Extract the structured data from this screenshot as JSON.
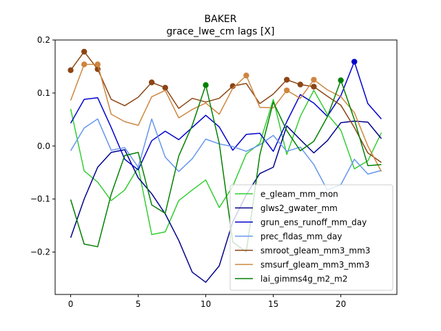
{
  "chart_data": {
    "type": "line",
    "title": "BAKER",
    "subtitle": "grace_lwe_cm lags [X]",
    "xlim": [
      -1.15,
      24.15
    ],
    "ylim": [
      -0.28,
      0.2
    ],
    "xticks": [
      0,
      5,
      10,
      15,
      20
    ],
    "xtick_labels": [
      "0",
      "5",
      "10",
      "15",
      "20"
    ],
    "yticks": [
      -0.2,
      -0.1,
      0.0,
      0.1,
      0.2
    ],
    "ytick_labels": [
      "−0.2",
      "−0.1",
      "0.0",
      "0.1",
      "0.2"
    ],
    "grid": false,
    "legend_position": "lower-right",
    "x": [
      0,
      1,
      2,
      3,
      4,
      5,
      6,
      7,
      8,
      9,
      10,
      11,
      12,
      13,
      14,
      15,
      16,
      17,
      18,
      19,
      20,
      21,
      22,
      23
    ],
    "series": [
      {
        "name": "e_gleam_mm_mon",
        "color": "#32cd32",
        "values": [
          0.07,
          -0.047,
          -0.068,
          -0.103,
          -0.083,
          -0.04,
          -0.167,
          -0.162,
          -0.103,
          -0.083,
          -0.064,
          -0.116,
          -0.076,
          -0.015,
          0.005,
          0.088,
          -0.016,
          0.056,
          0.105,
          0.06,
          0.03,
          -0.043,
          -0.028,
          0.025
        ],
        "markers": []
      },
      {
        "name": "glws2_gwater_mm",
        "color": "#00008b",
        "values": [
          -0.173,
          -0.1,
          -0.04,
          -0.012,
          -0.007,
          -0.06,
          -0.09,
          -0.128,
          -0.178,
          -0.238,
          -0.257,
          -0.226,
          -0.143,
          -0.092,
          -0.052,
          -0.04,
          0.038,
          0.012,
          -0.013,
          0.01,
          0.044,
          0.047,
          0.045,
          0.014
        ],
        "markers": []
      },
      {
        "name": "grun_ens_runoff_mm_day",
        "color": "#0000cd",
        "values": [
          0.043,
          0.088,
          0.091,
          0.035,
          -0.025,
          -0.045,
          0.01,
          0.028,
          0.012,
          0.035,
          0.058,
          0.036,
          -0.008,
          0.022,
          0.024,
          -0.01,
          0.046,
          0.097,
          0.081,
          0.056,
          0.095,
          0.159,
          0.08,
          0.051
        ],
        "markers": [
          21
        ]
      },
      {
        "name": "prec_fldas_mm_day",
        "color": "#6495ed",
        "values": [
          -0.009,
          0.034,
          0.051,
          -0.008,
          -0.003,
          -0.04,
          0.051,
          -0.021,
          -0.048,
          -0.024,
          0.013,
          0.004,
          -0.001,
          -0.01,
          0.002,
          0.02,
          -0.01,
          -0.002,
          -0.035,
          -0.083,
          -0.073,
          -0.025,
          -0.053,
          -0.046
        ],
        "markers": []
      },
      {
        "name": "smroot_gleam_mm3_mm3",
        "color": "#8b4513",
        "values": [
          0.143,
          0.178,
          0.145,
          0.088,
          0.076,
          0.092,
          0.12,
          0.11,
          0.071,
          0.09,
          0.083,
          0.09,
          0.113,
          0.118,
          0.08,
          0.098,
          0.125,
          0.116,
          0.112,
          0.094,
          0.077,
          0.035,
          -0.013,
          -0.031
        ],
        "markers": [
          0,
          1,
          2,
          6,
          7,
          12,
          16,
          17,
          18
        ]
      },
      {
        "name": "smsurf_gleam_mm3_mm3",
        "color": "#cd853f",
        "values": [
          0.086,
          0.154,
          0.154,
          0.06,
          0.046,
          0.039,
          0.093,
          0.105,
          0.053,
          0.069,
          0.081,
          0.06,
          0.109,
          0.133,
          0.073,
          0.072,
          0.105,
          0.09,
          0.125,
          0.106,
          0.093,
          0.063,
          0.0,
          -0.048
        ],
        "markers": [
          1,
          2,
          13,
          16,
          18
        ]
      },
      {
        "name": "lai_gimms4g_m2_m2",
        "color": "#008000",
        "values": [
          -0.101,
          -0.185,
          -0.19,
          -0.091,
          -0.018,
          -0.012,
          -0.111,
          -0.127,
          -0.019,
          0.039,
          0.115,
          0.005,
          -0.181,
          -0.2,
          -0.017,
          0.083,
          0.029,
          -0.009,
          0.009,
          0.055,
          0.124,
          0.05,
          -0.037,
          -0.035
        ],
        "markers": [
          10,
          20
        ]
      }
    ]
  }
}
